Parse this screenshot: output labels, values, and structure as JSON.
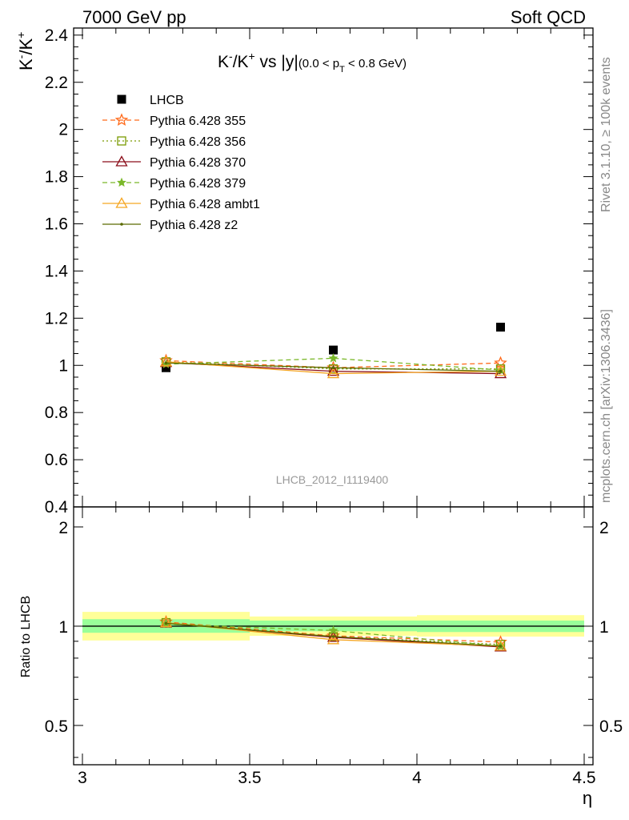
{
  "header": {
    "left": "7000 GeV pp",
    "right": "Soft QCD"
  },
  "side_text": {
    "rivet": "Rivet 3.1.10, ≥ 100k events",
    "source": "mcplots.cern.ch [arXiv:1306.3436]"
  },
  "analysis_label": "LHCB_2012_I1119400",
  "chart_data": [
    {
      "type": "line",
      "title": "K⁻/K⁺ vs |y|",
      "title_parts": {
        "main": "K",
        "sup1": "-",
        "slash": "/K",
        "sup2": "+",
        "vs": " vs |y|",
        "range": "(0.0 < p",
        "sub": "T",
        "range_end": " < 0.8 GeV)"
      },
      "ylabel_parts": {
        "k": "K",
        "sup1": "-",
        "slash": "/K",
        "sup2": "+"
      },
      "xlim": [
        3.0,
        4.5
      ],
      "ylim": [
        0.4,
        2.43
      ],
      "y_ticks": [
        "0.4",
        "0.6",
        "0.8",
        "1",
        "1.2",
        "1.4",
        "1.6",
        "1.8",
        "2",
        "2.2",
        "2.4"
      ],
      "x": [
        3.25,
        3.75,
        4.25
      ],
      "series": [
        {
          "name": "LHCB",
          "color": "#000000",
          "marker": "filled-square",
          "line": "none",
          "values": [
            0.99,
            1.065,
            1.162
          ]
        },
        {
          "name": "Pythia 6.428 355",
          "color": "#ff6a1a",
          "marker": "open-star",
          "line": "dashed",
          "values": [
            1.02,
            0.99,
            1.01
          ]
        },
        {
          "name": "Pythia 6.428 356",
          "color": "#7a9a00",
          "marker": "open-square",
          "line": "dotted",
          "values": [
            1.015,
            0.985,
            0.985
          ]
        },
        {
          "name": "Pythia 6.428 370",
          "color": "#8b0e1a",
          "marker": "open-triangle",
          "line": "solid",
          "values": [
            1.012,
            0.975,
            0.965
          ]
        },
        {
          "name": "Pythia 6.428 379",
          "color": "#7ab829",
          "marker": "filled-star",
          "line": "dashed",
          "values": [
            1.005,
            1.03,
            0.98
          ]
        },
        {
          "name": "Pythia 6.428 ambt1",
          "color": "#f5a623",
          "marker": "open-triangle",
          "line": "solid",
          "values": [
            1.015,
            0.965,
            0.975
          ]
        },
        {
          "name": "Pythia 6.428 z2",
          "color": "#5a6a00",
          "marker": "dot",
          "line": "solid",
          "values": [
            1.01,
            0.99,
            0.975
          ]
        }
      ]
    },
    {
      "type": "line",
      "ylabel": "Ratio to LHCB",
      "xlabel": "η",
      "xlim": [
        3.0,
        4.5
      ],
      "ylim": [
        0.38,
        2.3
      ],
      "y_scale": "log",
      "y_ticks": [
        "0.5",
        "1",
        "2"
      ],
      "x_ticks": [
        "3",
        "3.5",
        "4",
        "4.5"
      ],
      "x": [
        3.25,
        3.75,
        4.25
      ],
      "bands": {
        "bins": [
          [
            3.0,
            3.5
          ],
          [
            3.5,
            4.0
          ],
          [
            4.0,
            4.5
          ]
        ],
        "inner_color": "#99ff99",
        "outer_color": "#ffff99",
        "inner": [
          [
            0.955,
            1.05
          ],
          [
            0.965,
            1.04
          ],
          [
            0.96,
            1.04
          ]
        ],
        "outer": [
          [
            0.905,
            1.105
          ],
          [
            0.935,
            1.07
          ],
          [
            0.93,
            1.08
          ]
        ]
      },
      "series": [
        {
          "name": "Pythia 6.428 355",
          "color": "#ff6a1a",
          "marker": "open-star",
          "line": "dashed",
          "values": [
            1.03,
            0.935,
            0.895
          ]
        },
        {
          "name": "Pythia 6.428 356",
          "color": "#7a9a00",
          "marker": "open-square",
          "line": "dotted",
          "values": [
            1.025,
            0.93,
            0.88
          ]
        },
        {
          "name": "Pythia 6.428 370",
          "color": "#8b0e1a",
          "marker": "open-triangle",
          "line": "solid",
          "values": [
            1.022,
            0.925,
            0.865
          ]
        },
        {
          "name": "Pythia 6.428 379",
          "color": "#7ab829",
          "marker": "filled-star",
          "line": "dashed",
          "values": [
            1.015,
            0.97,
            0.87
          ]
        },
        {
          "name": "Pythia 6.428 ambt1",
          "color": "#f5a623",
          "marker": "open-triangle",
          "line": "solid",
          "values": [
            1.025,
            0.91,
            0.87
          ]
        },
        {
          "name": "Pythia 6.428 z2",
          "color": "#5a6a00",
          "marker": "dot",
          "line": "solid",
          "values": [
            1.02,
            0.93,
            0.87
          ]
        }
      ]
    }
  ]
}
